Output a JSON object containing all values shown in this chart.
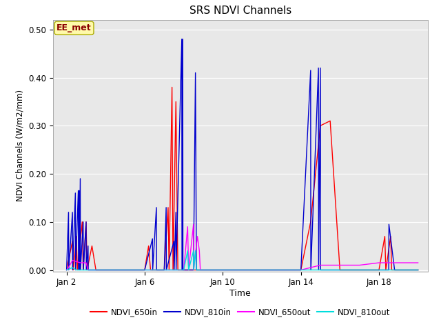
{
  "title": "SRS NDVI Channels",
  "xlabel": "Time",
  "ylabel": "NDVI Channels (W/m2/mm)",
  "ylim": [
    -0.003,
    0.52
  ],
  "xlim": [
    1.3,
    20.5
  ],
  "bg_color": "#e8e8e8",
  "annotation_text": "EE_met",
  "annotation_color": "#8b0000",
  "annotation_bg": "#fffaaa",
  "xtick_positions": [
    2,
    6,
    10,
    14,
    18
  ],
  "xtick_labels": [
    "Jan 2",
    "Jan 6",
    "Jan 10",
    "Jan 14",
    "Jan 18"
  ],
  "series": {
    "NDVI_650in": {
      "color": "#ff0000",
      "x": [
        2.0,
        2.3,
        2.35,
        2.5,
        2.55,
        2.8,
        2.85,
        3.0,
        3.05,
        3.3,
        3.5,
        4.0,
        5.0,
        5.5,
        6.0,
        6.2,
        6.3,
        6.5,
        7.0,
        7.2,
        7.25,
        7.4,
        7.45,
        7.6,
        7.7,
        8.0,
        8.05,
        8.5,
        8.51,
        9.0,
        9.01,
        9.5,
        10.0,
        10.5,
        11.0,
        11.5,
        12.0,
        12.5,
        13.0,
        13.5,
        14.0,
        14.5,
        15.0,
        15.5,
        16.0,
        16.5,
        17.0,
        17.5,
        18.0,
        18.3,
        18.35,
        18.6,
        18.65,
        19.0,
        19.2,
        19.5,
        20.0
      ],
      "y": [
        0.0,
        0.06,
        0.0,
        0.07,
        0.0,
        0.1,
        0.0,
        0.1,
        0.0,
        0.05,
        0.0,
        0.0,
        0.0,
        0.0,
        0.0,
        0.05,
        0.0,
        0.0,
        0.0,
        0.13,
        0.0,
        0.38,
        0.0,
        0.35,
        0.0,
        0.0,
        0.0,
        0.0,
        0.0,
        0.0,
        0.0,
        0.0,
        0.0,
        0.0,
        0.0,
        0.0,
        0.0,
        0.0,
        0.0,
        0.0,
        0.0,
        0.1,
        0.3,
        0.31,
        0.0,
        0.0,
        0.0,
        0.0,
        0.0,
        0.07,
        0.0,
        0.07,
        0.0,
        0.0,
        0.0,
        0.0,
        0.0
      ]
    },
    "NDVI_810in": {
      "color": "#0000cd",
      "x": [
        2.0,
        2.1,
        2.11,
        2.3,
        2.31,
        2.45,
        2.46,
        2.6,
        2.61,
        2.65,
        2.66,
        2.7,
        2.71,
        2.85,
        2.86,
        3.0,
        3.01,
        3.1,
        3.11,
        3.5,
        4.0,
        5.0,
        5.5,
        6.0,
        6.4,
        6.41,
        6.6,
        6.61,
        7.0,
        7.1,
        7.11,
        7.5,
        7.51,
        7.6,
        7.61,
        7.9,
        7.91,
        7.95,
        7.96,
        8.0,
        8.01,
        8.5,
        8.6,
        8.65,
        8.66,
        8.9,
        8.91,
        9.0,
        9.01,
        9.1,
        9.11,
        9.5,
        10.0,
        10.5,
        11.0,
        12.0,
        13.0,
        14.0,
        14.5,
        14.51,
        14.9,
        14.91,
        15.0,
        15.01,
        15.5,
        15.51,
        16.0,
        16.5,
        17.0,
        17.5,
        18.0,
        18.5,
        18.51,
        18.8,
        18.81,
        19.0,
        19.5,
        20.0
      ],
      "y": [
        0.0,
        0.12,
        0.0,
        0.12,
        0.0,
        0.16,
        0.0,
        0.165,
        0.0,
        0.165,
        0.0,
        0.19,
        0.0,
        0.1,
        0.0,
        0.1,
        0.0,
        0.05,
        0.0,
        0.0,
        0.0,
        0.0,
        0.0,
        0.0,
        0.065,
        0.0,
        0.13,
        0.0,
        0.0,
        0.13,
        0.0,
        0.06,
        0.0,
        0.12,
        0.0,
        0.48,
        0.0,
        0.48,
        0.0,
        0.0,
        0.0,
        0.0,
        0.41,
        0.0,
        0.0,
        0.0,
        0.0,
        0.0,
        0.0,
        0.0,
        0.0,
        0.0,
        0.0,
        0.0,
        0.0,
        0.0,
        0.0,
        0.0,
        0.415,
        0.0,
        0.42,
        0.0,
        0.42,
        0.0,
        0.0,
        0.0,
        0.0,
        0.0,
        0.0,
        0.0,
        0.0,
        0.0,
        0.095,
        0.0,
        0.0,
        0.0,
        0.0,
        0.0
      ]
    },
    "NDVI_650out": {
      "color": "#ff00ff",
      "x": [
        2.0,
        2.1,
        2.3,
        2.7,
        3.0,
        3.1,
        3.5,
        4.0,
        5.0,
        6.0,
        7.0,
        7.5,
        8.0,
        8.2,
        8.25,
        8.5,
        8.51,
        8.7,
        8.8,
        8.85,
        9.0,
        9.01,
        9.5,
        10.0,
        11.0,
        12.0,
        13.0,
        14.0,
        15.0,
        16.0,
        17.0,
        18.0,
        19.0,
        20.0
      ],
      "y": [
        0.0,
        0.005,
        0.02,
        0.015,
        0.015,
        0.0,
        0.0,
        0.0,
        0.0,
        0.0,
        0.0,
        0.0,
        0.0,
        0.09,
        0.0,
        0.095,
        0.0,
        0.07,
        0.04,
        0.0,
        0.0,
        0.0,
        0.0,
        0.0,
        0.0,
        0.0,
        0.0,
        0.0,
        0.01,
        0.01,
        0.01,
        0.015,
        0.015,
        0.015
      ]
    },
    "NDVI_810out": {
      "color": "#00dddd",
      "x": [
        2.0,
        2.3,
        2.5,
        3.0,
        3.5,
        4.0,
        5.0,
        6.0,
        7.0,
        8.0,
        8.2,
        8.25,
        8.5,
        8.51,
        8.6,
        8.65,
        9.0,
        9.5,
        10.0,
        11.0,
        12.0,
        13.0,
        14.0,
        15.0,
        16.0,
        17.0,
        18.0,
        19.0,
        20.0
      ],
      "y": [
        0.0,
        0.005,
        0.0,
        0.0,
        0.0,
        0.0,
        0.0,
        0.0,
        0.0,
        0.0,
        0.04,
        0.0,
        0.04,
        0.0,
        0.04,
        0.0,
        0.0,
        0.0,
        0.0,
        0.0,
        0.0,
        0.0,
        0.0,
        0.0,
        0.0,
        0.0,
        0.0,
        0.0,
        0.0
      ]
    }
  },
  "legend_entries": [
    "NDVI_650in",
    "NDVI_810in",
    "NDVI_650out",
    "NDVI_810out"
  ],
  "legend_colors": [
    "#ff0000",
    "#0000cd",
    "#ff00ff",
    "#00dddd"
  ]
}
